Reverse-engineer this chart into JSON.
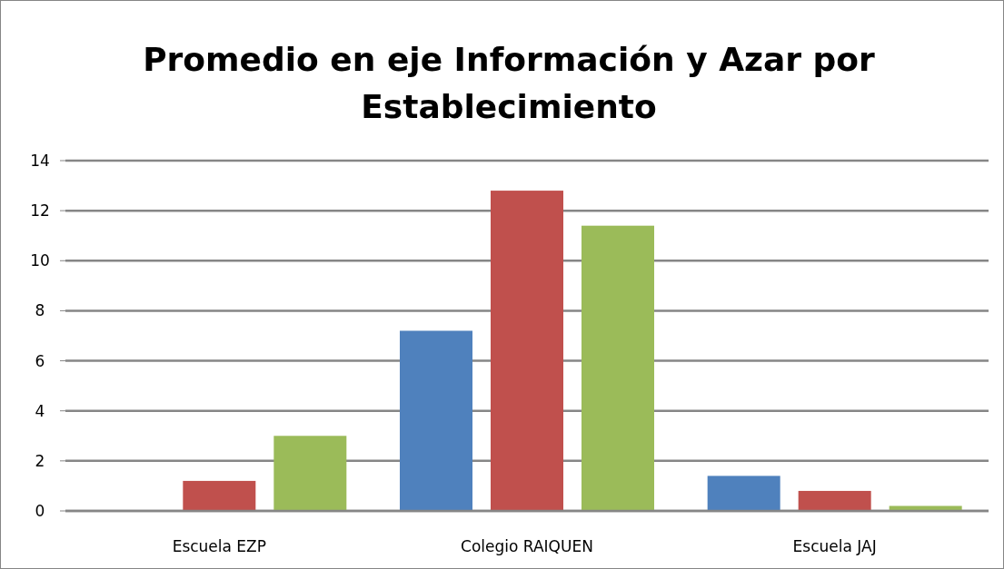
{
  "chart_data": {
    "type": "bar",
    "title": "Promedio en eje Información y Azar por Establecimiento",
    "categories": [
      "Escuela EZP",
      "Colegio RAIQUEN",
      "Escuela JAJ"
    ],
    "series": [
      {
        "color": "#4f81bd",
        "values": [
          0,
          7.2,
          1.4
        ]
      },
      {
        "color": "#c0504d",
        "values": [
          1.2,
          12.8,
          0.8
        ]
      },
      {
        "color": "#9bbb59",
        "values": [
          3.0,
          11.4,
          0.2
        ]
      }
    ],
    "ylim": [
      0,
      14
    ],
    "yticks": [
      0,
      2,
      4,
      6,
      8,
      10,
      12,
      14
    ],
    "grid": "y"
  }
}
